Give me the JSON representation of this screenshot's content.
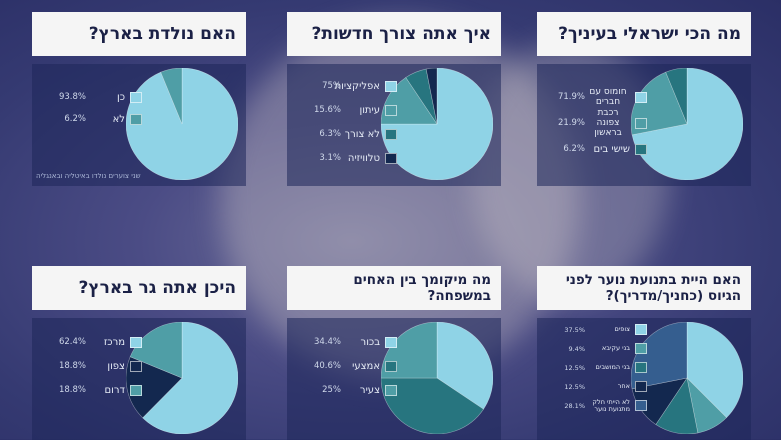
{
  "colors": [
    "#8fd3e6",
    "#4f9ea6",
    "#27757f",
    "#13284f",
    "#355e8f"
  ],
  "chart_data": [
    {
      "type": "pie",
      "title": "מה הכי ישראלי בעיניך?",
      "categories": [
        "חומוס עם חברים",
        "רכבת צפונה בראשון",
        "שישי בים"
      ],
      "values": [
        71.9,
        21.9,
        6.2
      ],
      "labels": [
        "71.9%",
        "21.9%",
        "6.2%"
      ]
    },
    {
      "type": "pie",
      "title": "איך אתה צורך חדשות?",
      "categories": [
        "אפליקציות",
        "עיתון",
        "לא צורך",
        "טלוויזיה"
      ],
      "values": [
        75,
        15.6,
        6.3,
        3.1
      ],
      "labels": [
        "75%",
        "15.6%",
        "6.3%",
        "3.1%"
      ]
    },
    {
      "type": "pie",
      "title": "האם נולדת בארץ?",
      "categories": [
        "כן",
        "לא"
      ],
      "values": [
        93.8,
        6.2
      ],
      "labels": [
        "93.8%",
        "6.2%"
      ],
      "note": "שני צוערים נולדו באיטליה ובאנגליה"
    },
    {
      "type": "pie",
      "title": "האם היית בתנועת נוער לפני הגיוס (כחניך/מדריך)?",
      "categories": [
        "צופים",
        "בני עקיבא",
        "בני המושבים",
        "אחר",
        "לא הייתי חלק מתנועת נוער"
      ],
      "values": [
        37.5,
        9.4,
        12.5,
        12.5,
        28.1
      ],
      "labels": [
        "37.5%",
        "9.4%",
        "12.5%",
        "12.5%",
        "28.1%"
      ]
    },
    {
      "type": "pie",
      "title": "מה מיקומך בין האחים במשפחה?",
      "categories": [
        "בכור",
        "אמצעי",
        "צעיר"
      ],
      "values": [
        34.4,
        40.6,
        25
      ],
      "labels": [
        "34.4%",
        "40.6%",
        "25%"
      ]
    },
    {
      "type": "pie",
      "title": "היכן אתה גר בארץ?",
      "categories": [
        "מרכז",
        "צפון",
        "דרום"
      ],
      "values": [
        62.4,
        18.8,
        18.8
      ],
      "labels": [
        "62.4%",
        "18.8%",
        "18.8%"
      ]
    }
  ]
}
